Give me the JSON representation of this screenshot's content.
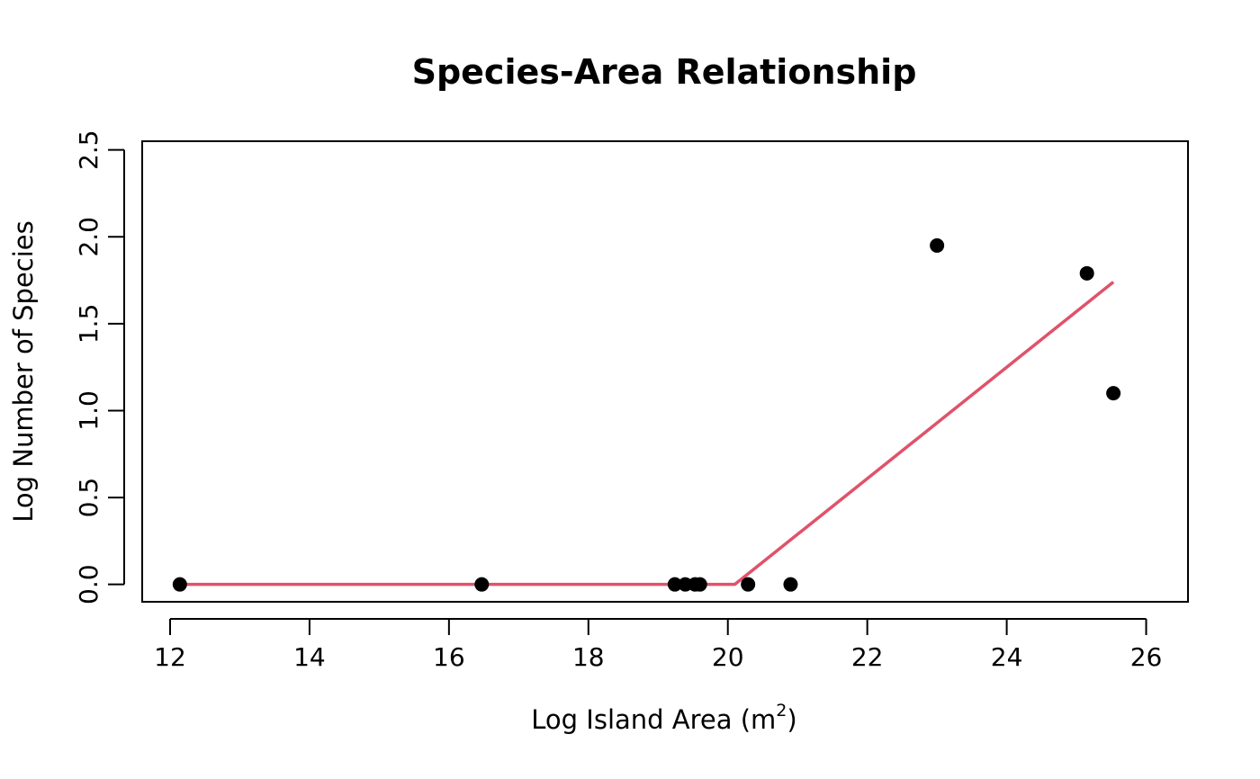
{
  "chart_data": {
    "type": "scatter",
    "title": "Species-Area Relationship",
    "xlabel": "Log Island Area (m",
    "xlabel_superscript": "2",
    "xlabel_suffix": ")",
    "ylabel": "Log Number of Species",
    "xlim": [
      11.6,
      26.6
    ],
    "ylim": [
      -0.1,
      2.55
    ],
    "x_ticks": [
      12,
      14,
      16,
      18,
      20,
      22,
      24,
      26
    ],
    "x_tick_labels": [
      "12",
      "14",
      "16",
      "18",
      "20",
      "22",
      "24",
      "26"
    ],
    "y_ticks": [
      0.0,
      0.5,
      1.0,
      1.5,
      2.0,
      2.5
    ],
    "y_tick_labels": [
      "0.0",
      "0.5",
      "1.0",
      "1.5",
      "2.0",
      "2.5"
    ],
    "grid": false,
    "points": {
      "color": "#000000",
      "x": [
        12.14,
        16.47,
        19.24,
        19.39,
        19.53,
        19.6,
        20.29,
        20.9,
        23.0,
        25.15,
        25.53
      ],
      "y": [
        0.0,
        0.0,
        0.0,
        0.0,
        0.0,
        0.0,
        0.0,
        0.0,
        1.95,
        1.79,
        1.1
      ]
    },
    "fit_line": {
      "color": "#DF536B",
      "x": [
        12.14,
        20.1,
        25.53
      ],
      "y": [
        0.0,
        0.0,
        1.74
      ]
    }
  }
}
